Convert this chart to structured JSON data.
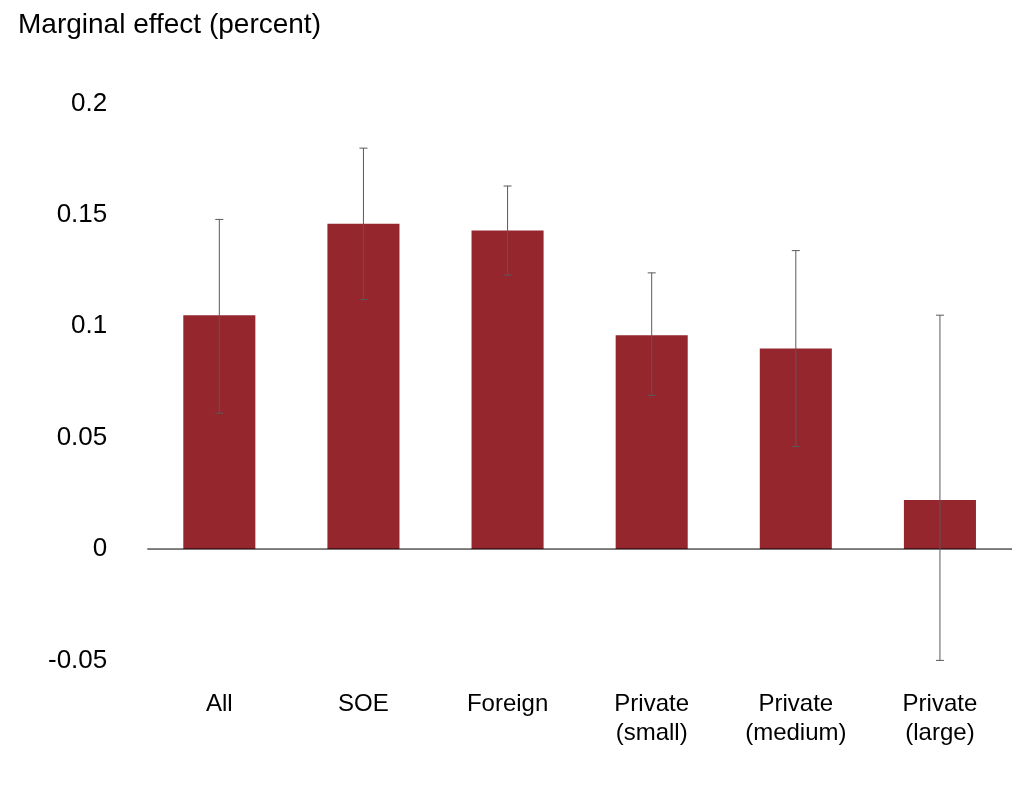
{
  "chart_data": {
    "type": "bar",
    "ylabel": "Marginal effect (percent)",
    "categories": [
      "All",
      "SOE",
      "Foreign",
      "Private (small)",
      "Private (medium)",
      "Private (large)"
    ],
    "values": [
      0.105,
      0.146,
      0.143,
      0.096,
      0.09,
      0.022
    ],
    "errors": [
      [
        0.061,
        0.148
      ],
      [
        0.112,
        0.18
      ],
      [
        0.123,
        0.163
      ],
      [
        0.069,
        0.124
      ],
      [
        0.046,
        0.134
      ],
      [
        -0.05,
        0.105
      ]
    ],
    "color": "#96262e",
    "ylim": [
      -0.05,
      0.2
    ],
    "yticks": [
      -0.05,
      0,
      0.05,
      0.1,
      0.15,
      0.2
    ],
    "legend": false
  }
}
